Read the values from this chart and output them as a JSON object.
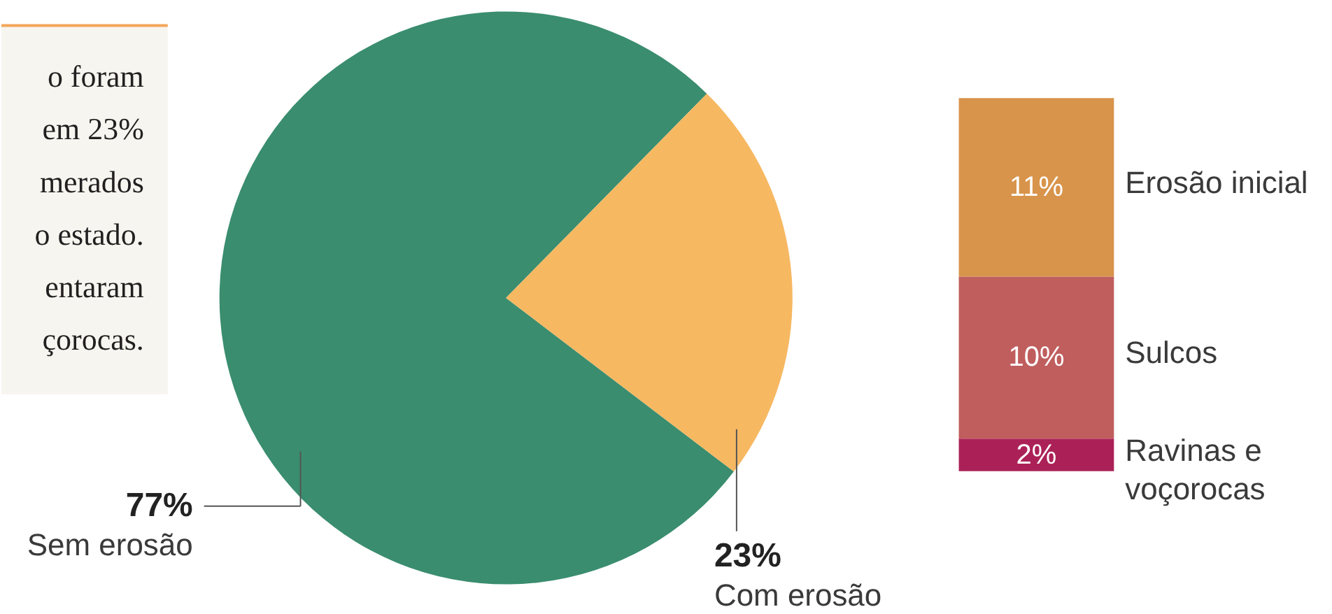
{
  "chart_data": [
    {
      "type": "other",
      "annotations": [
        "o foram",
        "em 23%",
        "merados",
        "o estado.",
        "entaram",
        "çorocas."
      ]
    },
    {
      "type": "pie",
      "categories": [
        "Sem erosão",
        "Com erosão"
      ],
      "values": [
        77,
        23
      ],
      "colors": [
        "#3a8d6f",
        "#f7b862"
      ],
      "value_labels": [
        "77%",
        "23%"
      ]
    },
    {
      "type": "bar",
      "stacked": true,
      "categories": [
        null
      ],
      "series": [
        {
          "name": "Ravinas e\nvoçorocas",
          "color": "#ab2157",
          "values": [
            2
          ],
          "value_labels": [
            "2%"
          ]
        },
        {
          "name": "Sulcos",
          "color": "#c05e5e",
          "values": [
            10
          ],
          "value_labels": [
            "10%"
          ]
        },
        {
          "name": "Erosão inicial",
          "color": "#d8944b",
          "values": [
            11
          ],
          "value_labels": [
            "11%"
          ]
        }
      ]
    }
  ]
}
